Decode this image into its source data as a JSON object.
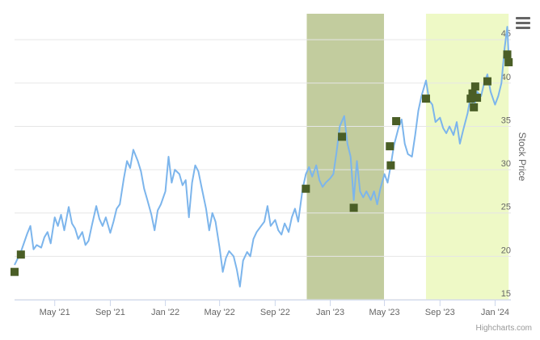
{
  "chart_data": {
    "type": "line",
    "title": "",
    "xlabel": "",
    "ylabel": "Stock Price",
    "ylim": [
      15,
      48
    ],
    "y_ticks": [
      15,
      20,
      25,
      30,
      35,
      40,
      45
    ],
    "x_range": [
      "2021-02-01",
      "2024-02-05"
    ],
    "x_ticks": [
      {
        "date": "2021-05-01",
        "label": "May '21"
      },
      {
        "date": "2021-09-01",
        "label": "Sep '21"
      },
      {
        "date": "2022-01-01",
        "label": "Jan '22"
      },
      {
        "date": "2022-05-01",
        "label": "May '22"
      },
      {
        "date": "2022-09-01",
        "label": "Sep '22"
      },
      {
        "date": "2023-01-01",
        "label": "Jan '23"
      },
      {
        "date": "2023-05-01",
        "label": "May '23"
      },
      {
        "date": "2023-09-01",
        "label": "Sep '23"
      },
      {
        "date": "2024-01-01",
        "label": "Jan '24"
      }
    ],
    "grid": true,
    "colors": {
      "line": "#7cb5ec",
      "marker": "#4a5e26",
      "band1": "#c2cc9e",
      "band2": "#eef9c6",
      "grid": "#e6e6e6"
    },
    "bands": [
      {
        "from": "2022-11-10",
        "to": "2023-04-30"
      },
      {
        "from": "2023-08-01",
        "to": "2024-01-31"
      }
    ],
    "series": [
      {
        "points": [
          [
            "2021-02-01",
            19.0
          ],
          [
            "2021-02-15",
            20.5
          ],
          [
            "2021-03-01",
            22.6
          ],
          [
            "2021-03-08",
            23.5
          ],
          [
            "2021-03-15",
            20.8
          ],
          [
            "2021-03-22",
            21.3
          ],
          [
            "2021-04-01",
            21.0
          ],
          [
            "2021-04-08",
            22.2
          ],
          [
            "2021-04-15",
            22.8
          ],
          [
            "2021-04-22",
            21.5
          ],
          [
            "2021-05-01",
            24.5
          ],
          [
            "2021-05-08",
            23.5
          ],
          [
            "2021-05-15",
            24.8
          ],
          [
            "2021-05-22",
            23.0
          ],
          [
            "2021-06-01",
            25.7
          ],
          [
            "2021-06-08",
            23.8
          ],
          [
            "2021-06-15",
            23.2
          ],
          [
            "2021-06-22",
            22.0
          ],
          [
            "2021-07-01",
            22.8
          ],
          [
            "2021-07-08",
            21.3
          ],
          [
            "2021-07-15",
            21.8
          ],
          [
            "2021-07-22",
            23.5
          ],
          [
            "2021-08-01",
            25.8
          ],
          [
            "2021-08-08",
            24.3
          ],
          [
            "2021-08-15",
            23.5
          ],
          [
            "2021-08-22",
            24.5
          ],
          [
            "2021-09-01",
            22.7
          ],
          [
            "2021-09-08",
            24.0
          ],
          [
            "2021-09-15",
            25.5
          ],
          [
            "2021-09-22",
            26.0
          ],
          [
            "2021-10-01",
            29.0
          ],
          [
            "2021-10-08",
            31.0
          ],
          [
            "2021-10-15",
            30.2
          ],
          [
            "2021-10-22",
            32.3
          ],
          [
            "2021-11-01",
            31.0
          ],
          [
            "2021-11-08",
            29.8
          ],
          [
            "2021-11-15",
            27.8
          ],
          [
            "2021-11-22",
            26.5
          ],
          [
            "2021-12-01",
            24.8
          ],
          [
            "2021-12-08",
            23.0
          ],
          [
            "2021-12-15",
            25.3
          ],
          [
            "2021-12-22",
            26.0
          ],
          [
            "2022-01-01",
            27.5
          ],
          [
            "2022-01-08",
            31.5
          ],
          [
            "2022-01-15",
            28.5
          ],
          [
            "2022-01-22",
            30.0
          ],
          [
            "2022-02-01",
            29.5
          ],
          [
            "2022-02-08",
            28.2
          ],
          [
            "2022-02-15",
            28.8
          ],
          [
            "2022-02-22",
            24.5
          ],
          [
            "2022-03-01",
            28.5
          ],
          [
            "2022-03-08",
            30.5
          ],
          [
            "2022-03-15",
            29.8
          ],
          [
            "2022-03-22",
            28.0
          ],
          [
            "2022-04-01",
            25.5
          ],
          [
            "2022-04-08",
            23.0
          ],
          [
            "2022-04-15",
            25.0
          ],
          [
            "2022-04-22",
            24.0
          ],
          [
            "2022-05-01",
            21.0
          ],
          [
            "2022-05-08",
            18.2
          ],
          [
            "2022-05-15",
            19.8
          ],
          [
            "2022-05-22",
            20.6
          ],
          [
            "2022-06-01",
            20.0
          ],
          [
            "2022-06-08",
            18.5
          ],
          [
            "2022-06-15",
            16.5
          ],
          [
            "2022-06-22",
            19.5
          ],
          [
            "2022-07-01",
            20.5
          ],
          [
            "2022-07-08",
            20.0
          ],
          [
            "2022-07-15",
            22.0
          ],
          [
            "2022-07-22",
            22.8
          ],
          [
            "2022-08-01",
            23.5
          ],
          [
            "2022-08-08",
            24.0
          ],
          [
            "2022-08-15",
            25.8
          ],
          [
            "2022-08-22",
            23.5
          ],
          [
            "2022-09-01",
            24.2
          ],
          [
            "2022-09-08",
            23.0
          ],
          [
            "2022-09-15",
            22.5
          ],
          [
            "2022-09-22",
            23.8
          ],
          [
            "2022-10-01",
            22.8
          ],
          [
            "2022-10-08",
            24.5
          ],
          [
            "2022-10-15",
            25.5
          ],
          [
            "2022-10-22",
            24.0
          ],
          [
            "2022-11-01",
            27.8
          ],
          [
            "2022-11-08",
            29.5
          ],
          [
            "2022-11-15",
            30.3
          ],
          [
            "2022-11-22",
            29.2
          ],
          [
            "2022-12-01",
            30.5
          ],
          [
            "2022-12-08",
            28.8
          ],
          [
            "2022-12-15",
            28.0
          ],
          [
            "2022-12-22",
            28.5
          ],
          [
            "2023-01-01",
            29.0
          ],
          [
            "2023-01-08",
            29.5
          ],
          [
            "2023-01-15",
            32.0
          ],
          [
            "2023-01-22",
            35.0
          ],
          [
            "2023-02-01",
            36.2
          ],
          [
            "2023-02-08",
            33.0
          ],
          [
            "2023-02-15",
            31.5
          ],
          [
            "2023-02-22",
            26.5
          ],
          [
            "2023-03-01",
            31.0
          ],
          [
            "2023-03-08",
            27.5
          ],
          [
            "2023-03-15",
            26.8
          ],
          [
            "2023-03-22",
            27.5
          ],
          [
            "2023-04-01",
            26.5
          ],
          [
            "2023-04-08",
            27.5
          ],
          [
            "2023-04-15",
            26.0
          ],
          [
            "2023-04-22",
            27.8
          ],
          [
            "2023-05-01",
            29.5
          ],
          [
            "2023-05-08",
            28.5
          ],
          [
            "2023-05-15",
            30.5
          ],
          [
            "2023-05-22",
            32.8
          ],
          [
            "2023-06-01",
            34.8
          ],
          [
            "2023-06-08",
            35.8
          ],
          [
            "2023-06-15",
            33.0
          ],
          [
            "2023-06-22",
            31.8
          ],
          [
            "2023-07-01",
            31.5
          ],
          [
            "2023-07-08",
            34.0
          ],
          [
            "2023-07-15",
            36.8
          ],
          [
            "2023-07-22",
            38.5
          ],
          [
            "2023-08-01",
            40.3
          ],
          [
            "2023-08-08",
            38.0
          ],
          [
            "2023-08-15",
            37.5
          ],
          [
            "2023-08-22",
            35.5
          ],
          [
            "2023-09-01",
            36.0
          ],
          [
            "2023-09-08",
            34.8
          ],
          [
            "2023-09-15",
            34.2
          ],
          [
            "2023-09-22",
            35.0
          ],
          [
            "2023-10-01",
            34.0
          ],
          [
            "2023-10-08",
            35.5
          ],
          [
            "2023-10-15",
            33.0
          ],
          [
            "2023-10-22",
            34.5
          ],
          [
            "2023-11-01",
            36.5
          ],
          [
            "2023-11-08",
            38.5
          ],
          [
            "2023-11-15",
            37.0
          ],
          [
            "2023-11-22",
            39.0
          ],
          [
            "2023-12-01",
            38.5
          ],
          [
            "2023-12-08",
            40.0
          ],
          [
            "2023-12-15",
            41.0
          ],
          [
            "2023-12-22",
            39.0
          ],
          [
            "2024-01-01",
            37.5
          ],
          [
            "2024-01-08",
            38.5
          ],
          [
            "2024-01-15",
            40.0
          ],
          [
            "2024-01-22",
            44.0
          ],
          [
            "2024-01-28",
            46.5
          ],
          [
            "2024-02-01",
            42.0
          ]
        ]
      },
      {
        "type": "scatter",
        "points": [
          [
            "2021-02-01",
            18.2
          ],
          [
            "2021-02-15",
            20.2
          ],
          [
            "2022-11-08",
            27.8
          ],
          [
            "2023-01-27",
            33.8
          ],
          [
            "2023-02-22",
            25.6
          ],
          [
            "2023-05-15",
            30.5
          ],
          [
            "2023-05-13",
            32.7
          ],
          [
            "2023-05-27",
            35.6
          ],
          [
            "2023-08-01",
            38.2
          ],
          [
            "2023-11-08",
            38.2
          ],
          [
            "2023-11-12",
            38.8
          ],
          [
            "2023-11-15",
            37.2
          ],
          [
            "2023-11-18",
            39.6
          ],
          [
            "2023-11-22",
            38.3
          ],
          [
            "2023-12-15",
            40.2
          ],
          [
            "2024-01-28",
            43.3
          ],
          [
            "2024-01-31",
            42.4
          ]
        ]
      }
    ]
  },
  "credits": "Highcharts.com"
}
